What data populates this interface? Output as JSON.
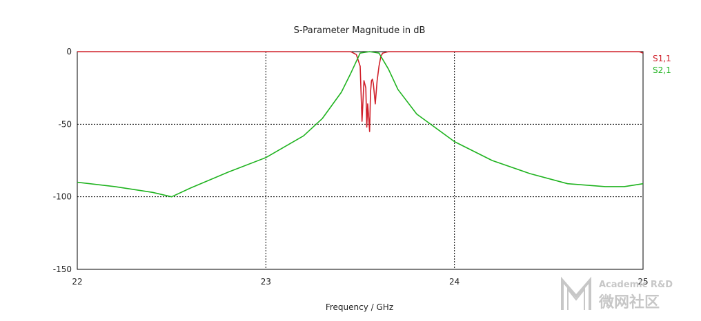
{
  "chart_data": {
    "type": "line",
    "title": "S-Parameter Magnitude in dB",
    "xlabel": "Frequency / GHz",
    "ylabel": "",
    "xlim": [
      22,
      25
    ],
    "ylim": [
      -150,
      0
    ],
    "x_ticks": [
      22,
      23,
      24,
      25
    ],
    "y_ticks": [
      0,
      -50,
      -100,
      -150
    ],
    "x_tick_labels": [
      "22",
      "23",
      "24",
      "25"
    ],
    "y_tick_labels": [
      "0",
      "-50",
      "-100",
      "-150"
    ],
    "grid": true,
    "legend_position": "right",
    "series": [
      {
        "name": "S1,1",
        "color": "#d0202a",
        "x": [
          22.0,
          23.0,
          23.3,
          23.45,
          23.48,
          23.5,
          23.51,
          23.52,
          23.53,
          23.535,
          23.54,
          23.545,
          23.55,
          23.555,
          23.56,
          23.565,
          23.57,
          23.58,
          23.59,
          23.6,
          23.61,
          23.62,
          23.65,
          24.0,
          24.5,
          24.98,
          25.0
        ],
        "values": [
          0,
          0,
          0,
          0,
          -2,
          -10,
          -48,
          -20,
          -25,
          -52,
          -36,
          -45,
          -55,
          -28,
          -20,
          -19,
          -22,
          -36,
          -20,
          -10,
          -3,
          -1,
          0,
          0,
          0,
          0,
          -1
        ]
      },
      {
        "name": "S2,1",
        "color": "#1fb31f",
        "x": [
          22.0,
          22.2,
          22.4,
          22.5,
          22.6,
          22.8,
          23.0,
          23.2,
          23.3,
          23.4,
          23.45,
          23.5,
          23.55,
          23.6,
          23.65,
          23.7,
          23.8,
          24.0,
          24.2,
          24.4,
          24.6,
          24.8,
          24.9,
          25.0
        ],
        "values": [
          -90,
          -93,
          -97,
          -100,
          -94,
          -83,
          -73,
          -58,
          -46,
          -28,
          -15,
          -1,
          0,
          -1,
          -12,
          -26,
          -43,
          -62,
          -75,
          -84,
          -91,
          -93,
          -93,
          -91
        ]
      }
    ],
    "annotations": []
  },
  "legend": {
    "s11": "S1,1",
    "s21": "S2,1"
  },
  "watermark": {
    "line1": "Academic R&D",
    "line2": "微网社区"
  }
}
